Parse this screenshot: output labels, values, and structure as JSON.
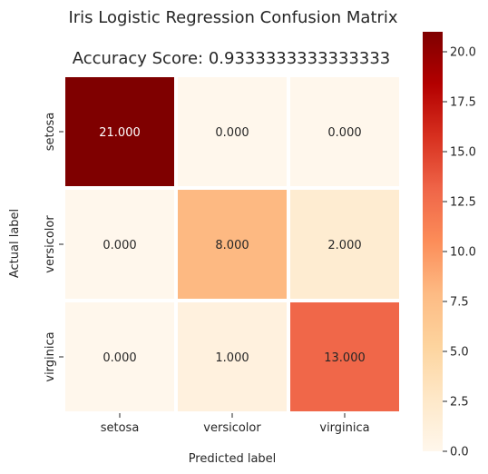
{
  "chart_data": {
    "type": "heatmap",
    "title": "Iris Logistic Regression Confusion Matrix",
    "subtitle": "Accuracy Score: 0.9333333333333333",
    "xlabel": "Predicted label",
    "ylabel": "Actual label",
    "x_categories": [
      "setosa",
      "versicolor",
      "virginica"
    ],
    "y_categories": [
      "setosa",
      "versicolor",
      "virginica"
    ],
    "values": [
      [
        21,
        0,
        0
      ],
      [
        0,
        8,
        2
      ],
      [
        0,
        1,
        13
      ]
    ],
    "cell_labels": [
      [
        "21.000",
        "0.000",
        "0.000"
      ],
      [
        "0.000",
        "8.000",
        "2.000"
      ],
      [
        "0.000",
        "1.000",
        "13.000"
      ]
    ],
    "colorscale": "OrRd",
    "colorbar_range": [
      0,
      21
    ],
    "colorbar_ticks": [
      0.0,
      2.5,
      5.0,
      7.5,
      10.0,
      12.5,
      15.0,
      17.5,
      20.0
    ],
    "colorbar_tick_labels": [
      "0.0",
      "2.5",
      "5.0",
      "7.5",
      "10.0",
      "12.5",
      "15.0",
      "17.5",
      "20.0"
    ]
  }
}
